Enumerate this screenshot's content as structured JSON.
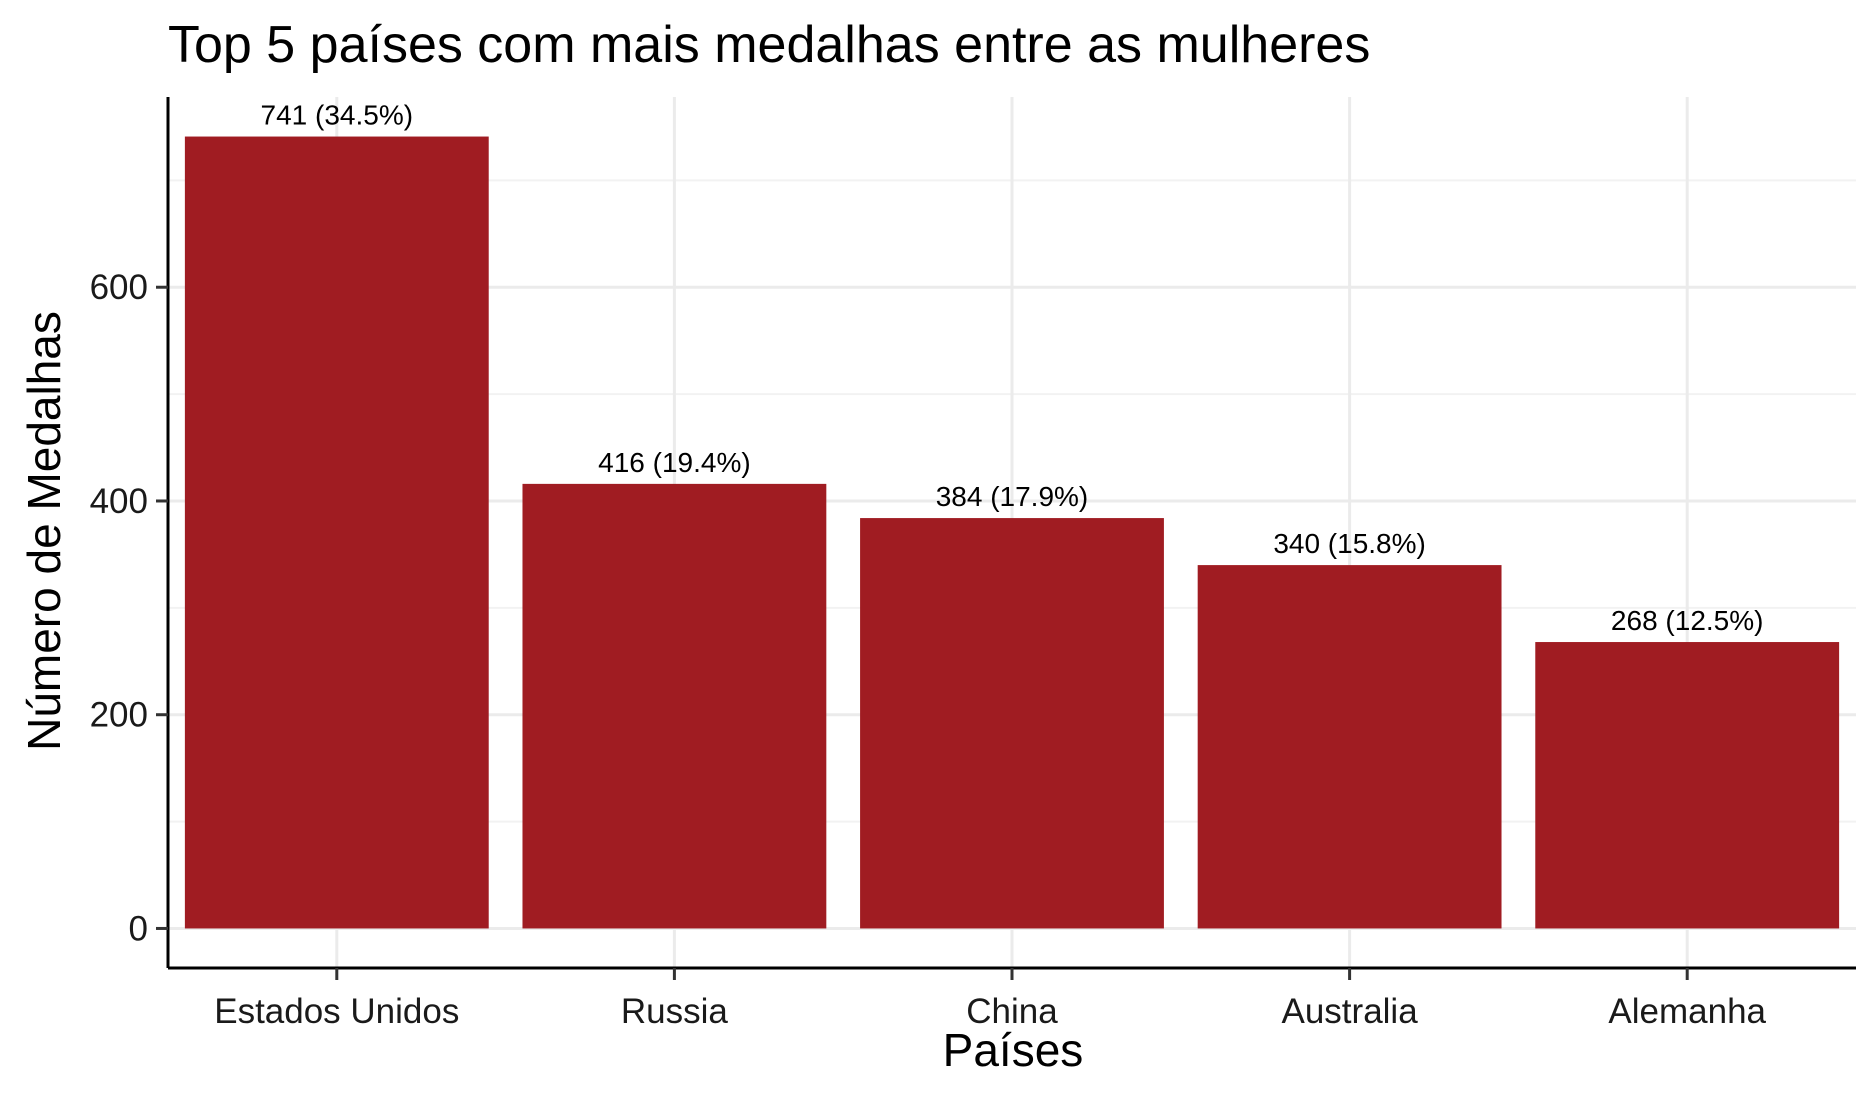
{
  "chart_data": {
    "type": "bar",
    "title": "Top 5 países com mais medalhas entre as mulheres",
    "xlabel": "Países",
    "ylabel": "Número de Medalhas",
    "categories": [
      "Estados Unidos",
      "Russia",
      "China",
      "Australia",
      "Alemanha"
    ],
    "values": [
      741,
      416,
      384,
      340,
      268
    ],
    "data_labels": [
      "741 (34.5%)",
      "416 (19.4%)",
      "384 (17.9%)",
      "340 (15.8%)",
      "268 (12.5%)"
    ],
    "yticks": [
      0,
      200,
      400,
      600
    ],
    "ylim": [
      -37,
      778
    ],
    "grid": true,
    "bar_color": "#A01C22"
  }
}
